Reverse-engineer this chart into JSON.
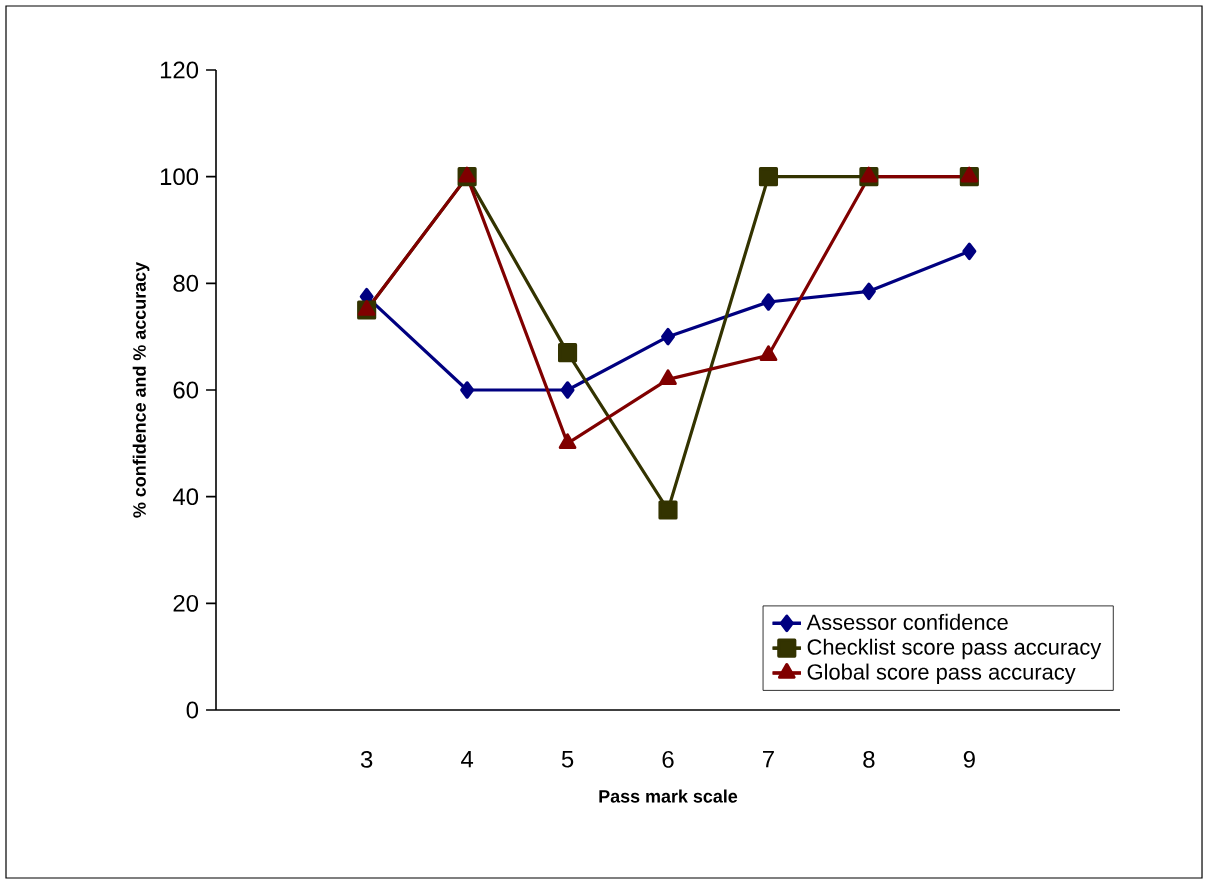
{
  "chart_data": {
    "type": "line",
    "xlabel": "Pass mark scale",
    "ylabel": "% confidence and % accuracy",
    "categories": [
      "3",
      "4",
      "5",
      "6",
      "7",
      "8",
      "9"
    ],
    "ylim": [
      0,
      120
    ],
    "yticks": [
      0,
      20,
      40,
      60,
      80,
      100,
      120
    ],
    "grid": false,
    "legend": "bottom right",
    "series": [
      {
        "name": "Assessor confidence",
        "color": "#000080",
        "marker": "diamond",
        "values": [
          77.5,
          60,
          60,
          70,
          76.5,
          78.5,
          86
        ]
      },
      {
        "name": "Checklist score pass accuracy",
        "color": "#333300",
        "marker": "square",
        "values": [
          75,
          100,
          67,
          37.5,
          100,
          100,
          100
        ]
      },
      {
        "name": "Global score pass accuracy",
        "color": "#800000",
        "marker": "triangle",
        "values": [
          75,
          100,
          50,
          62,
          66.5,
          100,
          100
        ]
      }
    ]
  }
}
